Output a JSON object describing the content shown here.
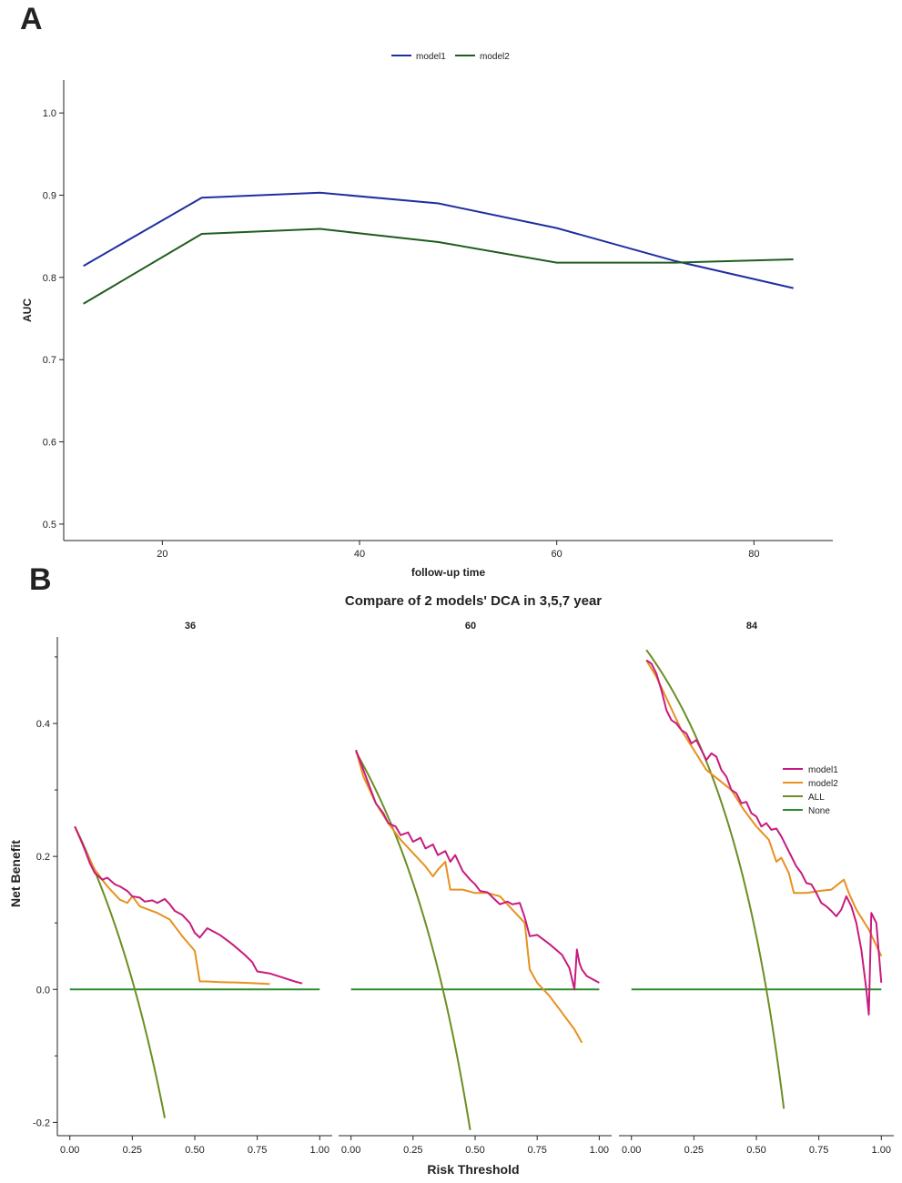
{
  "panels": {
    "a_label": "A",
    "b_label": "B"
  },
  "chart_data": [
    {
      "type": "line",
      "title": "",
      "xlabel": "follow-up time",
      "ylabel": "AUC",
      "xlim": [
        10,
        88
      ],
      "ylim": [
        0.48,
        1.04
      ],
      "xticks": [
        20,
        40,
        60,
        80
      ],
      "yticks": [
        0.5,
        0.6,
        0.7,
        0.8,
        0.9,
        1.0
      ],
      "legend_position": "top-center",
      "series": [
        {
          "name": "model1",
          "color": "#1f2fa0",
          "x": [
            12,
            24,
            36,
            48,
            60,
            72,
            84
          ],
          "y": [
            0.814,
            0.897,
            0.903,
            0.89,
            0.86,
            0.82,
            0.787
          ]
        },
        {
          "name": "model2",
          "color": "#1f5e1f",
          "x": [
            12,
            24,
            36,
            48,
            60,
            72,
            84
          ],
          "y": [
            0.768,
            0.853,
            0.859,
            0.843,
            0.818,
            0.818,
            0.822
          ]
        }
      ]
    },
    {
      "type": "line",
      "title": "Compare of 2 models' DCA in 3,5,7 year",
      "xlabel": "Risk Threshold",
      "ylabel": "Net Benefit",
      "xlim": [
        -0.05,
        1.05
      ],
      "ylim": [
        -0.22,
        0.53
      ],
      "xticks": [
        0.0,
        0.25,
        0.5,
        0.75,
        1.0
      ],
      "xtick_labels": [
        "0.00",
        "0.25",
        "0.50",
        "0.75",
        "1.00"
      ],
      "yticks": [
        -0.2,
        0.0,
        0.2,
        0.4
      ],
      "legend_position": "right",
      "legend": [
        {
          "name": "model1",
          "color": "#c71c7e"
        },
        {
          "name": "model2",
          "color": "#e8901f"
        },
        {
          "name": "ALL",
          "color": "#6b8e23"
        },
        {
          "name": "None",
          "color": "#2e8b2e"
        }
      ],
      "facets": [
        {
          "label": "36",
          "model1": {
            "x": [
              0.02,
              0.05,
              0.08,
              0.1,
              0.13,
              0.15,
              0.18,
              0.2,
              0.23,
              0.25,
              0.28,
              0.3,
              0.33,
              0.35,
              0.38,
              0.4,
              0.42,
              0.45,
              0.48,
              0.5,
              0.52,
              0.55,
              0.6,
              0.65,
              0.7,
              0.73,
              0.75,
              0.8,
              0.85,
              0.9,
              0.93
            ],
            "y": [
              0.245,
              0.22,
              0.19,
              0.175,
              0.165,
              0.168,
              0.158,
              0.155,
              0.148,
              0.14,
              0.138,
              0.132,
              0.134,
              0.13,
              0.136,
              0.128,
              0.118,
              0.112,
              0.1,
              0.085,
              0.078,
              0.092,
              0.082,
              0.068,
              0.052,
              0.041,
              0.027,
              0.024,
              0.018,
              0.012,
              0.009
            ]
          },
          "model2": {
            "x": [
              0.02,
              0.06,
              0.1,
              0.15,
              0.2,
              0.23,
              0.25,
              0.28,
              0.3,
              0.35,
              0.4,
              0.45,
              0.5,
              0.52,
              0.55,
              0.6,
              0.7,
              0.75,
              0.8
            ],
            "y": [
              0.245,
              0.21,
              0.18,
              0.155,
              0.135,
              0.13,
              0.14,
              0.125,
              0.122,
              0.115,
              0.105,
              0.08,
              0.058,
              0.012,
              0.012,
              0.011,
              0.01,
              0.009,
              0.008
            ]
          },
          "all": {
            "prevalence": 0.26,
            "x_start": 0.02,
            "x_end": 0.38
          },
          "none": {
            "x": [
              0.0,
              1.0
            ],
            "y": [
              0.0,
              0.0
            ]
          }
        },
        {
          "label": "60",
          "model1": {
            "x": [
              0.02,
              0.05,
              0.08,
              0.1,
              0.13,
              0.15,
              0.18,
              0.2,
              0.23,
              0.25,
              0.28,
              0.3,
              0.33,
              0.35,
              0.38,
              0.4,
              0.42,
              0.45,
              0.48,
              0.5,
              0.52,
              0.55,
              0.58,
              0.6,
              0.63,
              0.65,
              0.68,
              0.7,
              0.72,
              0.75,
              0.8,
              0.85,
              0.88,
              0.9,
              0.91,
              0.92,
              0.93,
              0.95,
              1.0
            ],
            "y": [
              0.36,
              0.33,
              0.3,
              0.28,
              0.265,
              0.25,
              0.245,
              0.232,
              0.236,
              0.222,
              0.228,
              0.212,
              0.218,
              0.202,
              0.208,
              0.192,
              0.202,
              0.178,
              0.165,
              0.158,
              0.148,
              0.146,
              0.135,
              0.128,
              0.132,
              0.128,
              0.13,
              0.108,
              0.08,
              0.082,
              0.068,
              0.052,
              0.032,
              0.0,
              0.06,
              0.04,
              0.03,
              0.02,
              0.01
            ]
          },
          "model2": {
            "x": [
              0.02,
              0.05,
              0.1,
              0.15,
              0.2,
              0.25,
              0.3,
              0.33,
              0.35,
              0.38,
              0.4,
              0.45,
              0.5,
              0.55,
              0.6,
              0.65,
              0.7,
              0.72,
              0.75,
              0.8,
              0.85,
              0.9,
              0.93
            ],
            "y": [
              0.36,
              0.32,
              0.28,
              0.25,
              0.225,
              0.205,
              0.185,
              0.17,
              0.18,
              0.192,
              0.15,
              0.15,
              0.145,
              0.145,
              0.14,
              0.12,
              0.1,
              0.03,
              0.01,
              -0.01,
              -0.035,
              -0.06,
              -0.08
            ]
          },
          "all": {
            "prevalence": 0.37,
            "x_start": 0.02,
            "x_end": 0.48
          },
          "none": {
            "x": [
              0.0,
              1.0
            ],
            "y": [
              0.0,
              0.0
            ]
          }
        },
        {
          "label": "84",
          "model1": {
            "x": [
              0.06,
              0.08,
              0.1,
              0.12,
              0.14,
              0.16,
              0.18,
              0.2,
              0.22,
              0.24,
              0.26,
              0.28,
              0.3,
              0.32,
              0.34,
              0.36,
              0.38,
              0.4,
              0.42,
              0.44,
              0.46,
              0.48,
              0.5,
              0.52,
              0.54,
              0.56,
              0.58,
              0.6,
              0.62,
              0.64,
              0.66,
              0.68,
              0.7,
              0.72,
              0.74,
              0.76,
              0.78,
              0.8,
              0.82,
              0.84,
              0.86,
              0.88,
              0.9,
              0.92,
              0.94,
              0.95,
              0.96,
              0.98,
              1.0
            ],
            "y": [
              0.495,
              0.49,
              0.475,
              0.45,
              0.42,
              0.405,
              0.4,
              0.39,
              0.385,
              0.37,
              0.375,
              0.36,
              0.345,
              0.355,
              0.35,
              0.33,
              0.32,
              0.3,
              0.295,
              0.28,
              0.282,
              0.265,
              0.26,
              0.245,
              0.25,
              0.24,
              0.242,
              0.23,
              0.215,
              0.2,
              0.185,
              0.175,
              0.16,
              0.158,
              0.145,
              0.13,
              0.125,
              0.118,
              0.11,
              0.12,
              0.14,
              0.125,
              0.1,
              0.06,
              0.0,
              -0.038,
              0.115,
              0.1,
              0.01
            ]
          },
          "model2": {
            "x": [
              0.06,
              0.1,
              0.15,
              0.2,
              0.25,
              0.3,
              0.35,
              0.4,
              0.45,
              0.5,
              0.55,
              0.58,
              0.6,
              0.63,
              0.65,
              0.7,
              0.75,
              0.8,
              0.85,
              0.87,
              0.9,
              0.95,
              1.0
            ],
            "y": [
              0.495,
              0.47,
              0.43,
              0.39,
              0.36,
              0.33,
              0.315,
              0.3,
              0.27,
              0.245,
              0.225,
              0.192,
              0.198,
              0.175,
              0.145,
              0.145,
              0.148,
              0.15,
              0.165,
              0.145,
              0.12,
              0.09,
              0.05
            ]
          },
          "all": {
            "prevalence": 0.54,
            "x_start": 0.06,
            "x_end": 0.61
          },
          "none": {
            "x": [
              0.0,
              1.0
            ],
            "y": [
              0.0,
              0.0
            ]
          }
        }
      ]
    }
  ]
}
